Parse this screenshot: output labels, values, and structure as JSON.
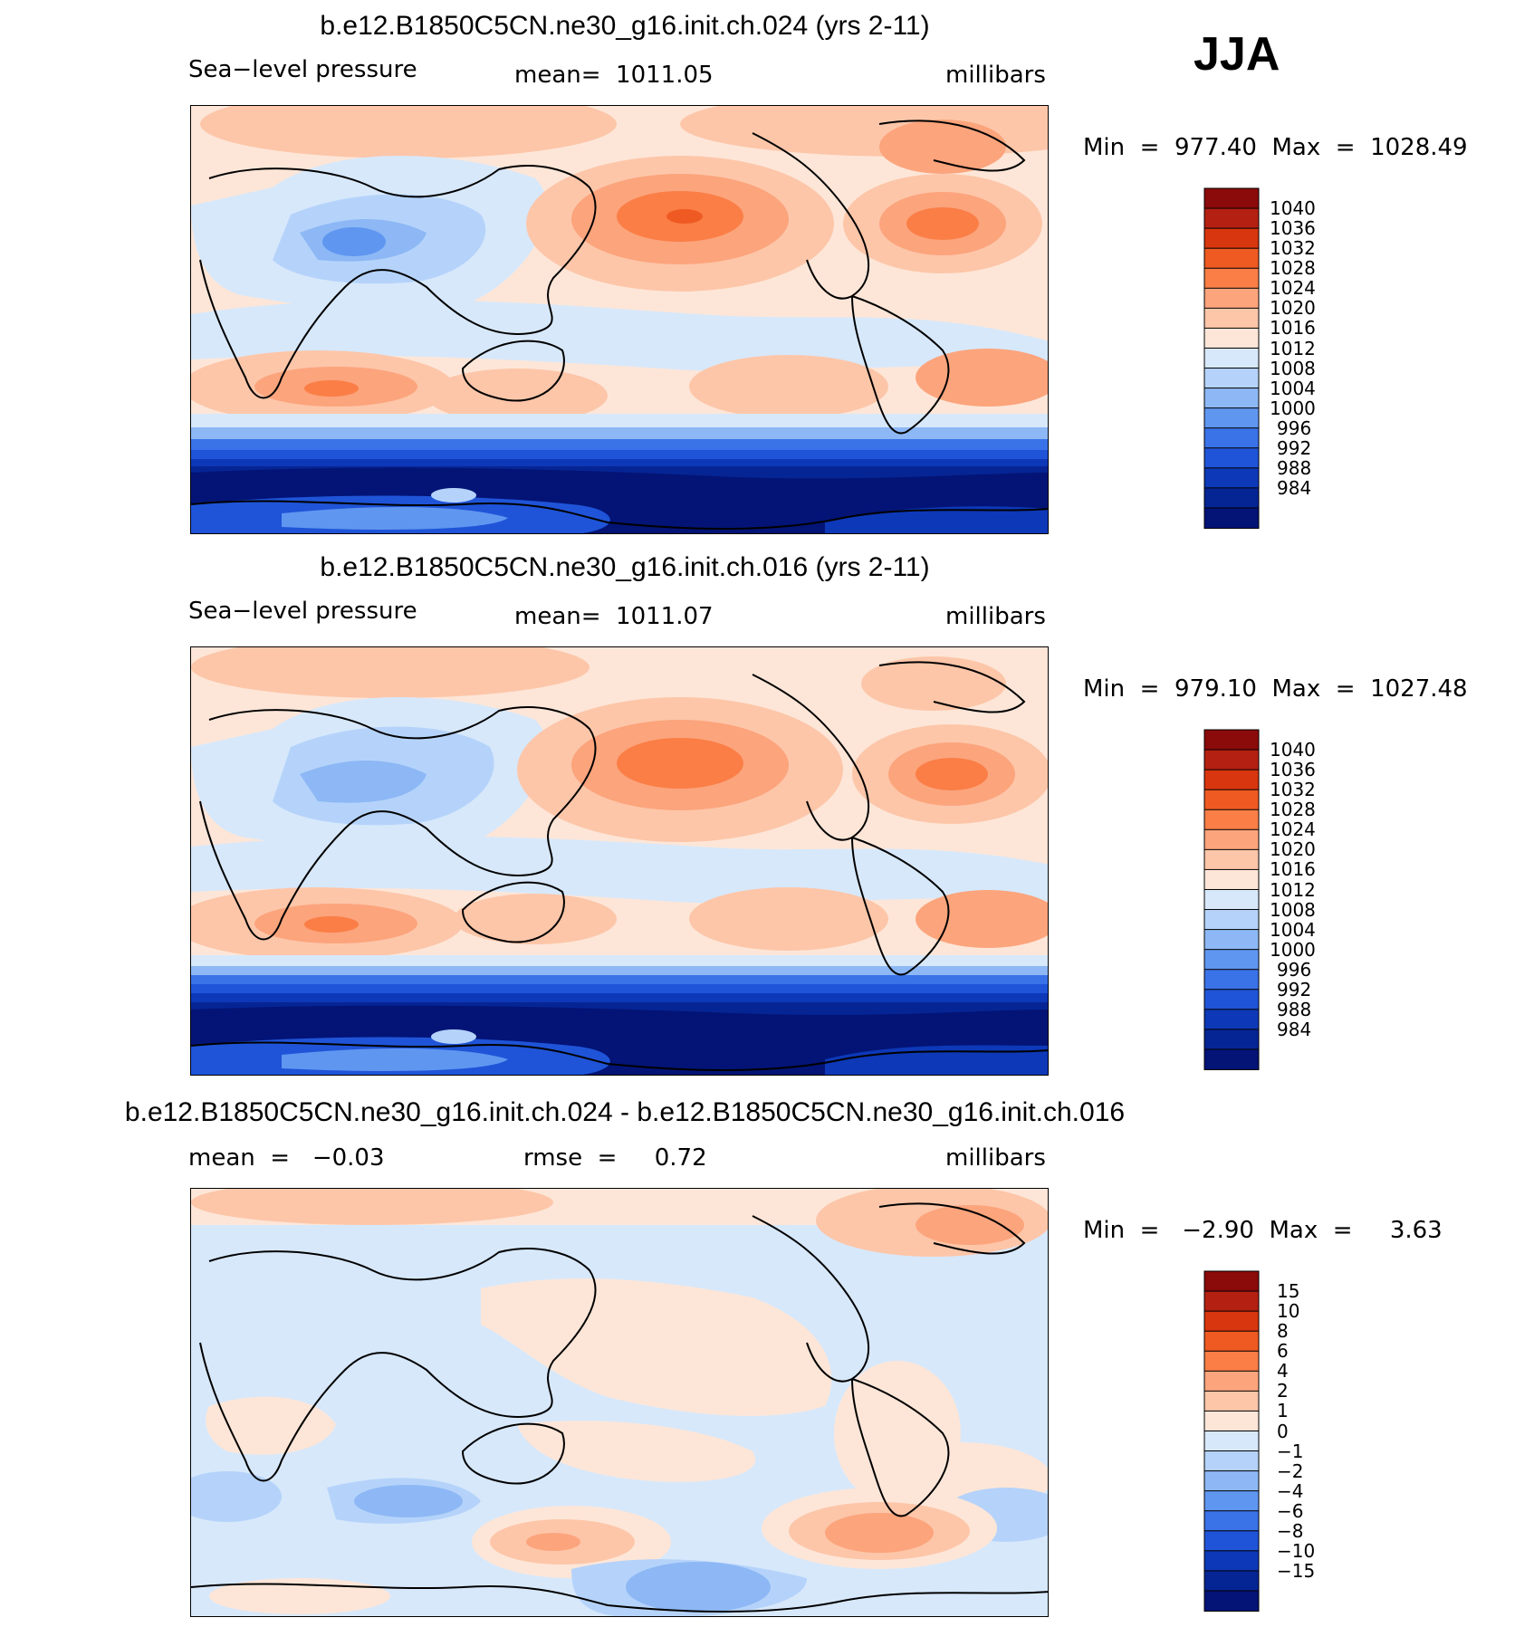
{
  "season": "JJA",
  "panels": [
    {
      "title": "b.e12.B1850C5CN.ne30_g16.init.ch.024 (yrs 2-11)",
      "left_label": "Sea−level pressure",
      "center_label": "mean=  1011.05",
      "right_label": "millibars",
      "minmax": "Min  =  977.40  Max  =  1028.49",
      "colorbar_labels": [
        "1040",
        "1036",
        "1032",
        "1028",
        "1024",
        "1020",
        "1016",
        "1012",
        "1008",
        "1004",
        "1000",
        "996",
        "992",
        "988",
        "984"
      ]
    },
    {
      "title": "b.e12.B1850C5CN.ne30_g16.init.ch.016 (yrs 2-11)",
      "left_label": "Sea−level pressure",
      "center_label": "mean=  1011.07",
      "right_label": "millibars",
      "minmax": "Min  =  979.10  Max  =  1027.48",
      "colorbar_labels": [
        "1040",
        "1036",
        "1032",
        "1028",
        "1024",
        "1020",
        "1016",
        "1012",
        "1008",
        "1004",
        "1000",
        "996",
        "992",
        "988",
        "984"
      ]
    },
    {
      "title": "b.e12.B1850C5CN.ne30_g16.init.ch.024 - b.e12.B1850C5CN.ne30_g16.init.ch.016",
      "left_label": "mean  =   −0.03",
      "center_label": "rmse  =     0.72",
      "right_label": "millibars",
      "minmax": "Min  =   −2.90  Max  =     3.63",
      "colorbar_labels": [
        "15",
        "10",
        "8",
        "6",
        "4",
        "2",
        "1",
        "0",
        "−1",
        "−2",
        "−4",
        "−6",
        "−8",
        "−10",
        "−15"
      ]
    }
  ],
  "colors": {
    "colorbar": [
      "#8b0a0a",
      "#b42012",
      "#d8360f",
      "#ee5a22",
      "#fa7e46",
      "#fca47c",
      "#fdc6a9",
      "#fde6d8",
      "#d7e8fb",
      "#b5d3fa",
      "#8db8f5",
      "#5f96f0",
      "#3a72e8",
      "#1f54d8",
      "#0d38b8",
      "#062594",
      "#031476"
    ]
  }
}
